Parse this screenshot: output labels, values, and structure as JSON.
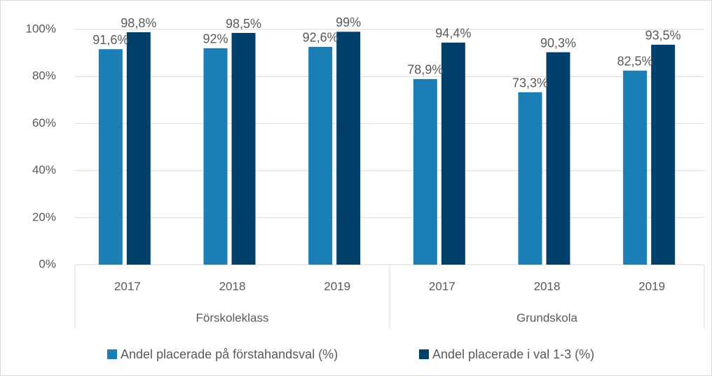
{
  "chart_data": {
    "type": "bar",
    "categories": [
      "2017",
      "2018",
      "2019",
      "2017",
      "2018",
      "2019"
    ],
    "groups": [
      "Förskoleklass",
      "Grundskola"
    ],
    "series": [
      {
        "name": "Andel placerade på förstahandsval (%)",
        "color": "#1b7fb6",
        "values": [
          91.6,
          92,
          92.6,
          78.9,
          73.3,
          82.5
        ],
        "value_labels": [
          "91,6%",
          "92%",
          "92,6%",
          "78,9%",
          "73,3%",
          "82,5%"
        ]
      },
      {
        "name": "Andel placerade i val 1-3 (%)",
        "color": "#00406a",
        "values": [
          98.8,
          98.5,
          99,
          94.4,
          90.3,
          93.5
        ],
        "value_labels": [
          "98,8%",
          "98,5%",
          "99%",
          "94,4%",
          "90,3%",
          "93,5%"
        ]
      }
    ],
    "ylim": [
      0,
      100
    ],
    "yticks": [
      {
        "value": 0,
        "label": "0%"
      },
      {
        "value": 20,
        "label": "20%"
      },
      {
        "value": 40,
        "label": "40%"
      },
      {
        "value": 60,
        "label": "60%"
      },
      {
        "value": 80,
        "label": "80%"
      },
      {
        "value": 100,
        "label": "100%"
      }
    ],
    "grid": true,
    "legend": "bottom"
  }
}
